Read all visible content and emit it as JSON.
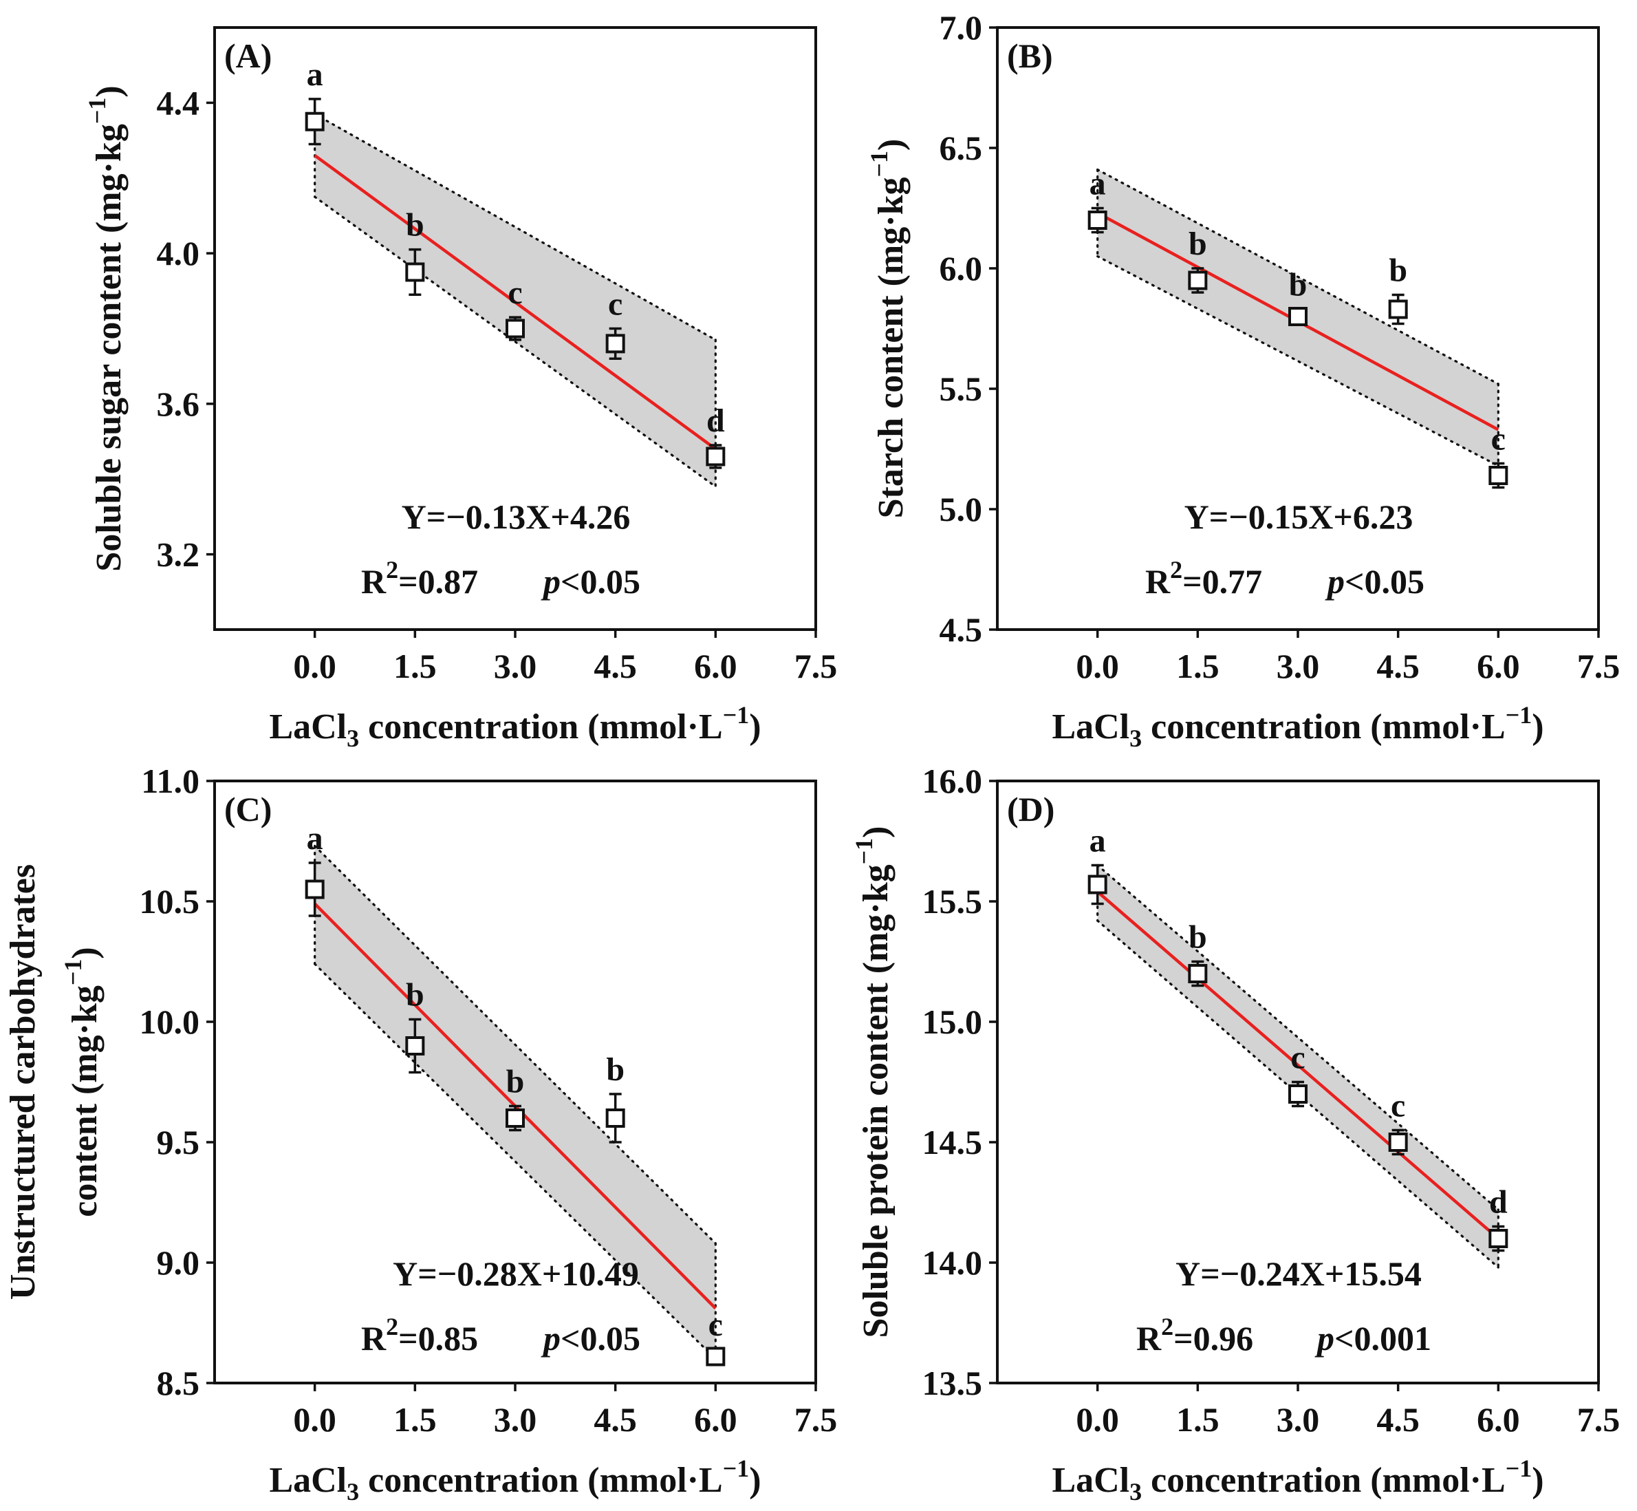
{
  "colors": {
    "fit": "#e8211f",
    "band": "#d3d3d3",
    "ink": "#111111"
  },
  "chart_data": [
    {
      "type": "scatter",
      "panel": "(A)",
      "x": [
        0.0,
        1.5,
        3.0,
        4.5,
        6.0
      ],
      "y": [
        4.35,
        3.95,
        3.8,
        3.76,
        3.46
      ],
      "err": [
        0.06,
        0.06,
        0.03,
        0.04,
        0.03
      ],
      "letters": [
        "a",
        "b",
        "c",
        "c",
        "d"
      ],
      "fit": {
        "slope": -0.13,
        "intercept": 4.26
      },
      "band": {
        "upper": [
          4.37,
          3.77
        ],
        "lower": [
          4.15,
          3.38
        ]
      },
      "equation": "Y=−0.13X+4.26",
      "r2_label": "R",
      "r2_value": "=0.87",
      "p_label": "p",
      "p_value": "<0.05",
      "xlabel": "LaCl",
      "xlabel_sub": "3",
      "xlabel_rest": " concentration (mmol·L",
      "xlabel_sup": "−1",
      "xlabel_end": ")",
      "ylabel_lines": [
        {
          "text": "Soluble sugar content (mg·kg",
          "sup": "−1",
          "end": ")"
        }
      ],
      "xlim": [
        -1.5,
        7.5
      ],
      "ylim": [
        3.0,
        4.6
      ],
      "xticks": [
        "0.0",
        "1.5",
        "3.0",
        "4.5",
        "6.0",
        "7.5"
      ],
      "yticks": [
        "3.2",
        "3.6",
        "4.0",
        "4.4"
      ]
    },
    {
      "type": "scatter",
      "panel": "(B)",
      "x": [
        0.0,
        1.5,
        3.0,
        4.5,
        6.0
      ],
      "y": [
        6.2,
        5.95,
        5.8,
        5.83,
        5.14
      ],
      "err": [
        0.05,
        0.05,
        0.03,
        0.06,
        0.05
      ],
      "letters": [
        "a",
        "b",
        "b",
        "b",
        "c"
      ],
      "fit": {
        "slope": -0.15,
        "intercept": 6.23
      },
      "band": {
        "upper": [
          6.41,
          5.52
        ],
        "lower": [
          6.05,
          5.18
        ]
      },
      "equation": "Y=−0.15X+6.23",
      "r2_label": "R",
      "r2_value": "=0.77",
      "p_label": "p",
      "p_value": "<0.05",
      "xlabel": "LaCl",
      "xlabel_sub": "3",
      "xlabel_rest": " concentration (mmol·L",
      "xlabel_sup": "−1",
      "xlabel_end": ")",
      "ylabel_lines": [
        {
          "text": "Starch content (mg·kg",
          "sup": "−1",
          "end": ")"
        }
      ],
      "xlim": [
        -1.5,
        7.5
      ],
      "ylim": [
        4.5,
        7.0
      ],
      "xticks": [
        "0.0",
        "1.5",
        "3.0",
        "4.5",
        "6.0",
        "7.5"
      ],
      "yticks": [
        "4.5",
        "5.0",
        "5.5",
        "6.0",
        "6.5",
        "7.0"
      ]
    },
    {
      "type": "scatter",
      "panel": "(C)",
      "x": [
        0.0,
        1.5,
        3.0,
        4.5,
        6.0
      ],
      "y": [
        10.55,
        9.9,
        9.6,
        9.6,
        8.61
      ],
      "err": [
        0.11,
        0.11,
        0.05,
        0.1,
        0.03
      ],
      "letters": [
        "a",
        "b",
        "b",
        "b",
        "c"
      ],
      "fit": {
        "slope": -0.28,
        "intercept": 10.49
      },
      "band": {
        "upper": [
          10.73,
          9.08
        ],
        "lower": [
          10.24,
          8.6
        ]
      },
      "equation": "Y=−0.28X+10.49",
      "r2_label": "R",
      "r2_value": "=0.85",
      "p_label": "p",
      "p_value": "<0.05",
      "xlabel": "LaCl",
      "xlabel_sub": "3",
      "xlabel_rest": " concentration (mmol·L",
      "xlabel_sup": "−1",
      "xlabel_end": ")",
      "ylabel_lines": [
        {
          "text": "Unstructured carbohydrates",
          "sup": "",
          "end": ""
        },
        {
          "text": "content (mg·kg",
          "sup": "−1",
          "end": ")"
        }
      ],
      "xlim": [
        -1.5,
        7.5
      ],
      "ylim": [
        8.5,
        11.0
      ],
      "xticks": [
        "0.0",
        "1.5",
        "3.0",
        "4.5",
        "6.0",
        "7.5"
      ],
      "yticks": [
        "8.5",
        "9.0",
        "9.5",
        "10.0",
        "10.5",
        "11.0"
      ]
    },
    {
      "type": "scatter",
      "panel": "(D)",
      "x": [
        0.0,
        1.5,
        3.0,
        4.5,
        6.0
      ],
      "y": [
        15.57,
        15.2,
        14.7,
        14.5,
        14.1
      ],
      "err": [
        0.08,
        0.05,
        0.05,
        0.05,
        0.05
      ],
      "letters": [
        "a",
        "b",
        "c",
        "c",
        "d"
      ],
      "fit": {
        "slope": -0.24,
        "intercept": 15.54
      },
      "band": {
        "upper": [
          15.65,
          14.22
        ],
        "lower": [
          15.42,
          13.98
        ]
      },
      "equation": "Y=−0.24X+15.54",
      "r2_label": "R",
      "r2_value": "=0.96",
      "p_label": "p",
      "p_value": "<0.001",
      "xlabel": "LaCl",
      "xlabel_sub": "3",
      "xlabel_rest": " concentration (mmol·L",
      "xlabel_sup": "−1",
      "xlabel_end": ")",
      "ylabel_lines": [
        {
          "text": "Soluble protein content (mg·kg",
          "sup": "−1",
          "end": ")"
        }
      ],
      "xlim": [
        -1.5,
        7.5
      ],
      "ylim": [
        13.5,
        16.0
      ],
      "xticks": [
        "0.0",
        "1.5",
        "3.0",
        "4.5",
        "6.0",
        "7.5"
      ],
      "yticks": [
        "13.5",
        "14.0",
        "14.5",
        "15.0",
        "15.5",
        "16.0"
      ]
    }
  ]
}
